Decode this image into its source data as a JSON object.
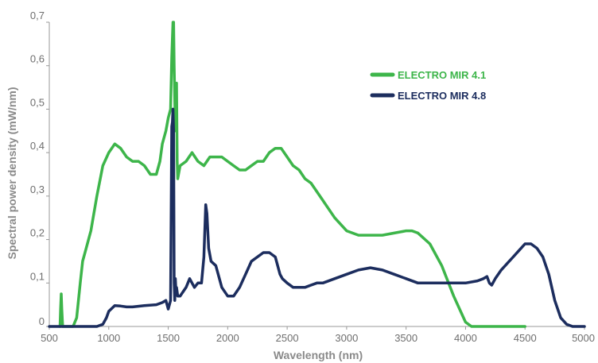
{
  "chart_data": {
    "type": "line",
    "title": "",
    "xlabel": "Wavelength (nm)",
    "ylabel": "Spectral power density (mW/nm)",
    "xlim": [
      500,
      5000
    ],
    "ylim": [
      0,
      0.7
    ],
    "x_ticks": [
      500,
      1000,
      1500,
      2000,
      2500,
      3000,
      3500,
      4000,
      4500,
      5000
    ],
    "x_tick_labels": [
      "500",
      "1000",
      "1500",
      "2000",
      "2500",
      "3000",
      "3500",
      "4000",
      "4500",
      "5000"
    ],
    "y_ticks": [
      0,
      0.1,
      0.2,
      0.3,
      0.4,
      0.5,
      0.6,
      0.7
    ],
    "y_tick_labels": [
      "0",
      "0,1",
      "0,2",
      "0,3",
      "0,4",
      "0,5",
      "0,6",
      "0,7"
    ],
    "grid": false,
    "legend_position": "top-right",
    "series": [
      {
        "name": "ELECTRO MIR 4.1",
        "color": "#3db54a",
        "x": [
          590,
          595,
          600,
          605,
          612,
          700,
          730,
          760,
          780,
          800,
          850,
          900,
          950,
          1000,
          1050,
          1100,
          1150,
          1200,
          1250,
          1300,
          1350,
          1400,
          1430,
          1450,
          1480,
          1500,
          1520,
          1530,
          1540,
          1545,
          1550,
          1560,
          1570,
          1575,
          1580,
          1600,
          1650,
          1700,
          1750,
          1800,
          1850,
          1900,
          1950,
          2000,
          2050,
          2100,
          2150,
          2200,
          2250,
          2300,
          2350,
          2400,
          2450,
          2500,
          2550,
          2600,
          2650,
          2700,
          2800,
          2900,
          3000,
          3100,
          3200,
          3300,
          3400,
          3500,
          3550,
          3600,
          3700,
          3800,
          3900,
          4000,
          4050,
          4100,
          4200,
          4300,
          4400,
          4500
        ],
        "y": [
          0,
          0.04,
          0.075,
          0.04,
          0,
          0,
          0.02,
          0.1,
          0.15,
          0.17,
          0.22,
          0.3,
          0.37,
          0.4,
          0.42,
          0.41,
          0.39,
          0.38,
          0.38,
          0.37,
          0.35,
          0.35,
          0.38,
          0.42,
          0.45,
          0.48,
          0.5,
          0.62,
          0.7,
          0.7,
          0.6,
          0.45,
          0.56,
          0.38,
          0.34,
          0.37,
          0.38,
          0.4,
          0.38,
          0.37,
          0.39,
          0.39,
          0.39,
          0.38,
          0.37,
          0.36,
          0.36,
          0.37,
          0.38,
          0.38,
          0.4,
          0.41,
          0.41,
          0.39,
          0.37,
          0.36,
          0.34,
          0.33,
          0.29,
          0.25,
          0.22,
          0.21,
          0.21,
          0.21,
          0.215,
          0.22,
          0.22,
          0.215,
          0.19,
          0.14,
          0.07,
          0.01,
          0,
          0,
          0,
          0,
          0,
          0
        ]
      },
      {
        "name": "ELECTRO MIR 4.8",
        "color": "#1c2d5e",
        "x": [
          500,
          900,
          950,
          980,
          1000,
          1050,
          1100,
          1150,
          1200,
          1300,
          1400,
          1450,
          1480,
          1500,
          1520,
          1530,
          1535,
          1540,
          1545,
          1550,
          1555,
          1560,
          1565,
          1570,
          1580,
          1600,
          1650,
          1680,
          1700,
          1720,
          1750,
          1780,
          1800,
          1815,
          1825,
          1840,
          1860,
          1900,
          1950,
          2000,
          2050,
          2100,
          2150,
          2200,
          2300,
          2350,
          2400,
          2440,
          2460,
          2500,
          2550,
          2600,
          2650,
          2700,
          2750,
          2800,
          2900,
          3000,
          3100,
          3200,
          3300,
          3400,
          3500,
          3600,
          3700,
          3800,
          3900,
          4000,
          4100,
          4150,
          4180,
          4200,
          4220,
          4250,
          4300,
          4400,
          4450,
          4500,
          4550,
          4600,
          4650,
          4700,
          4750,
          4800,
          4850,
          4900,
          4950,
          5000
        ],
        "y": [
          0,
          0,
          0.005,
          0.02,
          0.035,
          0.048,
          0.047,
          0.045,
          0.045,
          0.048,
          0.05,
          0.055,
          0.06,
          0.04,
          0.06,
          0.46,
          0.47,
          0.5,
          0.45,
          0.1,
          0.06,
          0.11,
          0.08,
          0.09,
          0.07,
          0.07,
          0.09,
          0.11,
          0.1,
          0.09,
          0.1,
          0.1,
          0.16,
          0.28,
          0.26,
          0.18,
          0.15,
          0.14,
          0.09,
          0.07,
          0.07,
          0.09,
          0.12,
          0.15,
          0.17,
          0.17,
          0.16,
          0.12,
          0.11,
          0.1,
          0.09,
          0.09,
          0.09,
          0.095,
          0.1,
          0.1,
          0.11,
          0.12,
          0.13,
          0.135,
          0.13,
          0.12,
          0.11,
          0.1,
          0.1,
          0.1,
          0.1,
          0.1,
          0.105,
          0.11,
          0.115,
          0.1,
          0.095,
          0.11,
          0.13,
          0.16,
          0.175,
          0.19,
          0.19,
          0.18,
          0.16,
          0.12,
          0.06,
          0.02,
          0.005,
          0,
          0,
          0
        ]
      }
    ]
  }
}
